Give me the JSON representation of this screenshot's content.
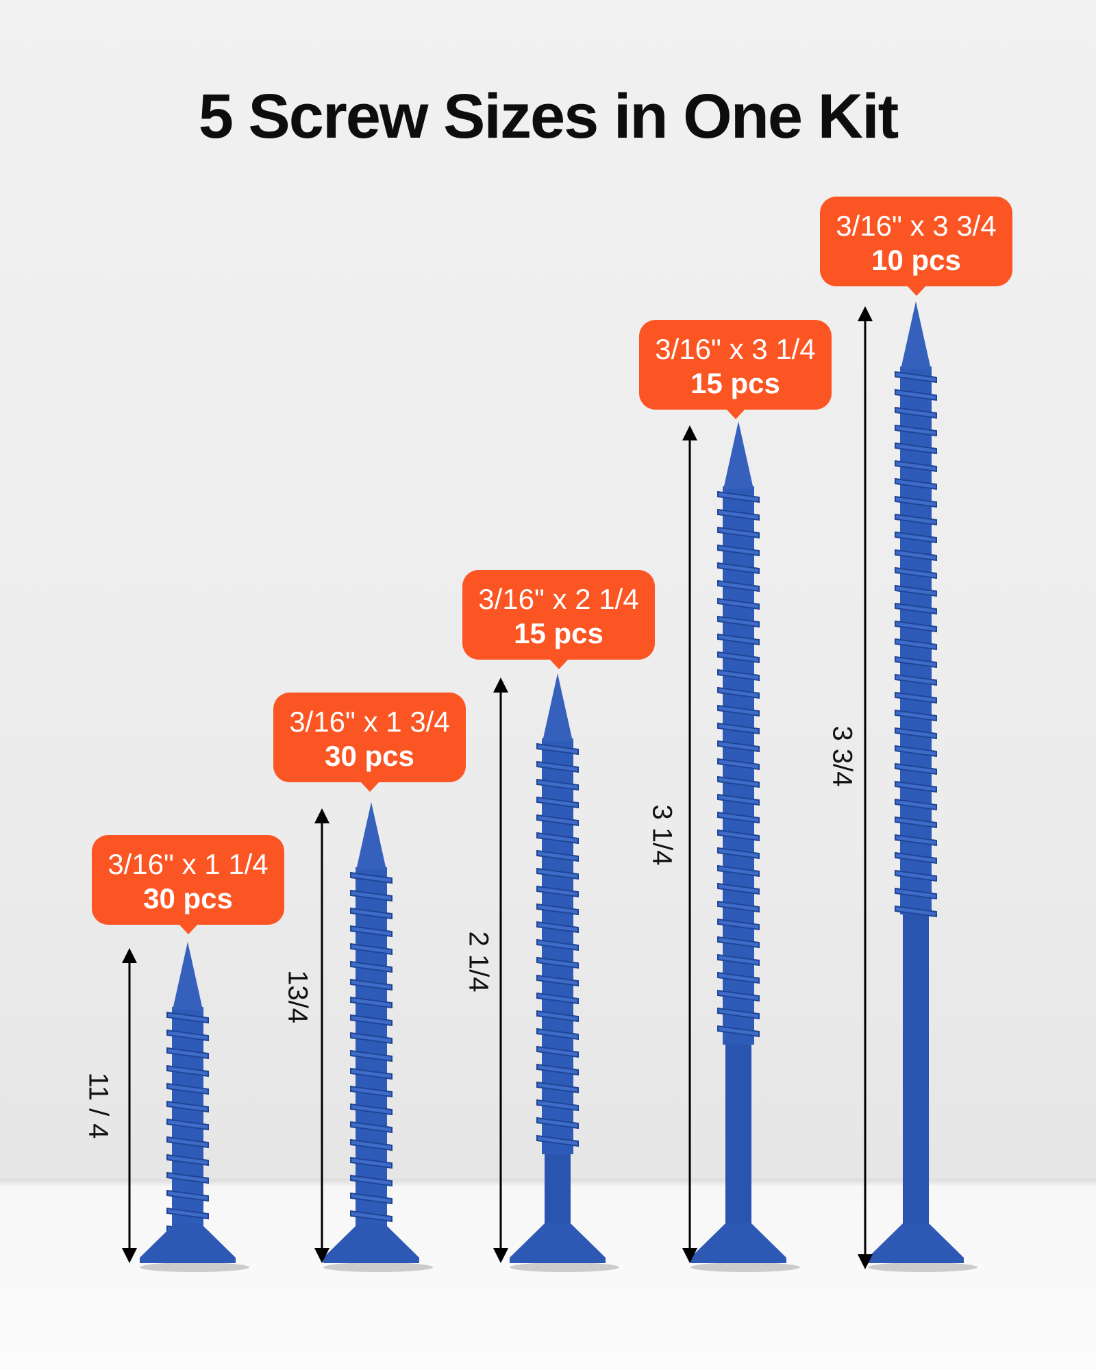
{
  "title": "5 Screw Sizes in One Kit",
  "colors": {
    "label_bg": "#fb5523",
    "screw": "#2f5bb8",
    "arrow": "#000000"
  },
  "screws": [
    {
      "size": "3/16\" x 1 1/4",
      "qty": "30 pcs",
      "dimension": "11 / 4"
    },
    {
      "size": "3/16\" x 1 3/4",
      "qty": "30 pcs",
      "dimension": "13/4"
    },
    {
      "size": "3/16\" x 2 1/4",
      "qty": "15 pcs",
      "dimension": "2 1/4"
    },
    {
      "size": "3/16\" x 3 1/4",
      "qty": "15 pcs",
      "dimension": "3 1/4"
    },
    {
      "size": "3/16\" x 3 3/4",
      "qty": "10 pcs",
      "dimension": "3 3/4"
    }
  ]
}
